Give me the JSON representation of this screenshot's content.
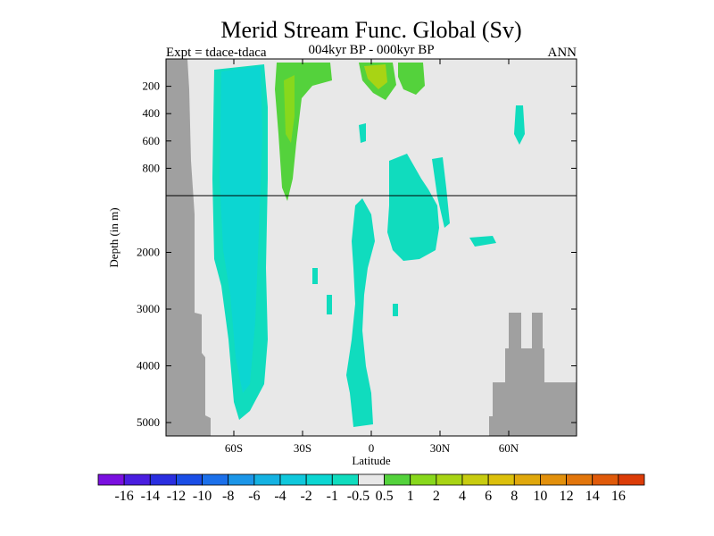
{
  "chart_data": {
    "type": "heatmap",
    "title": "Merid Stream Func. Global (Sv)",
    "experiment_label": "Expt = tdace-tdaca",
    "period_label": "004kyr BP - 000kyr BP",
    "season_label": "ANN",
    "xlabel": "Latitude",
    "ylabel": "Depth (in m)",
    "x_ticks": [
      {
        "value": -60,
        "label": "60S"
      },
      {
        "value": -30,
        "label": "30S"
      },
      {
        "value": 0,
        "label": "0"
      },
      {
        "value": 30,
        "label": "30N"
      },
      {
        "value": 60,
        "label": "60N"
      }
    ],
    "y_ticks_upper": [
      {
        "value": 200,
        "label": "200"
      },
      {
        "value": 400,
        "label": "400"
      },
      {
        "value": 600,
        "label": "600"
      },
      {
        "value": 800,
        "label": "800"
      }
    ],
    "y_ticks_lower": [
      {
        "value": 2000,
        "label": "2000"
      },
      {
        "value": 3000,
        "label": "3000"
      },
      {
        "value": 4000,
        "label": "4000"
      },
      {
        "value": 5000,
        "label": "5000"
      }
    ],
    "depth_break_m": 1000,
    "colorbar": {
      "colors": [
        "#7a10e0",
        "#4a1ee0",
        "#2a2ee0",
        "#1a4ee6",
        "#1c70ea",
        "#1c96e8",
        "#14b2e2",
        "#10c8dc",
        "#0cd6d2",
        "#10dcbe",
        "#e8e8e8",
        "#54d23c",
        "#88d81c",
        "#a8d414",
        "#c8cc10",
        "#dcc00c",
        "#e0a80c",
        "#e2900c",
        "#e2760c",
        "#e05a0a",
        "#dc3c08"
      ],
      "labels": [
        "-16",
        "-14",
        "-12",
        "-10",
        "-8",
        "-6",
        "-4",
        "-2",
        "-1",
        "-0.5",
        "0.5",
        "1",
        "2",
        "4",
        "6",
        "8",
        "10",
        "12",
        "14",
        "16"
      ]
    },
    "regions": [
      {
        "level": "-1 to -0.5",
        "description": "broad southern overturning cell near 60S-45S",
        "lat_range": [
          -63,
          -42
        ],
        "depth_range_m": [
          20,
          5000
        ]
      },
      {
        "level": "-1 to -0.5",
        "description": "patches near equator and 20N",
        "lat_range": [
          -5,
          25
        ],
        "depth_range_m": [
          800,
          5000
        ]
      },
      {
        "level": "1 to 2",
        "description": "upper northern cell near 30S",
        "lat_range": [
          -38,
          -26
        ],
        "depth_range_m": [
          20,
          1000
        ]
      },
      {
        "level": "1 to 6",
        "description": "near-surface cells near 0-10N",
        "lat_range": [
          0,
          12
        ],
        "depth_range_m": [
          20,
          250
        ]
      }
    ]
  }
}
